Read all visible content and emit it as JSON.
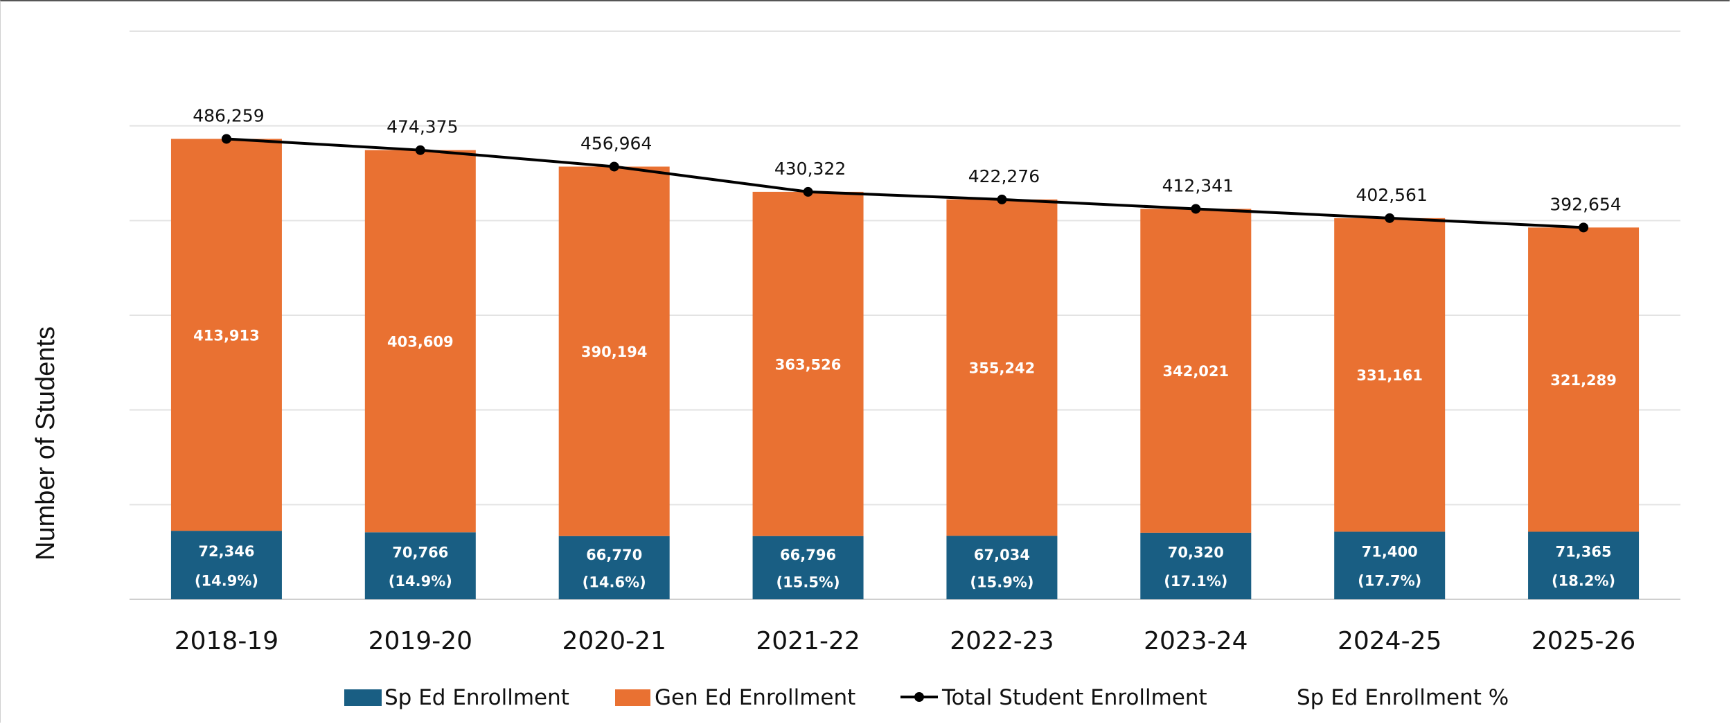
{
  "chart_data": {
    "type": "bar",
    "stacked": true,
    "categories": [
      "2018-19",
      "2019-20",
      "2020-21",
      "2021-22",
      "2022-23",
      "2023-24",
      "2024-25",
      "2025-26"
    ],
    "ylabel": "Number of Students",
    "ylim": [
      0,
      600000
    ],
    "grid": true,
    "legend_position": "bottom",
    "series": [
      {
        "name": "Sp Ed Enrollment",
        "kind": "bar",
        "color": "#195E83",
        "values": [
          72346,
          70766,
          66770,
          66796,
          67034,
          70320,
          71400,
          71365
        ],
        "labels": [
          "72,346",
          "70,766",
          "66,770",
          "66,796",
          "67,034",
          "70,320",
          "71,400",
          "71,365"
        ]
      },
      {
        "name": "Gen Ed Enrollment",
        "kind": "bar",
        "color": "#E97132",
        "values": [
          413913,
          403609,
          390194,
          363526,
          355242,
          342021,
          331161,
          321289
        ],
        "labels": [
          "413,913",
          "403,609",
          "390,194",
          "363,526",
          "355,242",
          "342,021",
          "331,161",
          "321,289"
        ]
      },
      {
        "name": "Total Student Enrollment",
        "kind": "line",
        "color": "#000000",
        "values": [
          486259,
          474375,
          456964,
          430322,
          422276,
          412341,
          402561,
          392654
        ],
        "labels": [
          "486,259",
          "474,375",
          "456,964",
          "430,322",
          "422,276",
          "412,341",
          "402,561",
          "392,654"
        ]
      },
      {
        "name": "Sp Ed Enrollment %",
        "kind": "label",
        "values": [
          14.9,
          14.9,
          14.6,
          15.5,
          15.9,
          17.1,
          17.7,
          18.2
        ],
        "labels": [
          "(14.9%)",
          "(14.9%)",
          "(14.6%)",
          "(15.5%)",
          "(15.9%)",
          "(17.1%)",
          "(17.7%)",
          "(18.2%)"
        ]
      }
    ]
  }
}
